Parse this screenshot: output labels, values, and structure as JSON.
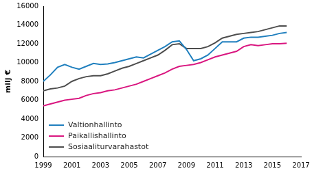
{
  "chart_data": {
    "type": "line",
    "y_label": "milj €",
    "x": [
      1999,
      1999.5,
      2000,
      2000.5,
      2001,
      2001.5,
      2002,
      2002.5,
      2003,
      2003.5,
      2004,
      2004.5,
      2005,
      2005.5,
      2006,
      2006.5,
      2007,
      2007.5,
      2008,
      2008.5,
      2009,
      2009.5,
      2010,
      2010.5,
      2011,
      2011.5,
      2012,
      2012.5,
      2013,
      2013.5,
      2014,
      2014.5,
      2015,
      2015.5,
      2016
    ],
    "series": [
      {
        "name": "Valtionhallinto",
        "color": "#1f7fbe",
        "values": [
          8000,
          8700,
          9500,
          9800,
          9500,
          9300,
          9600,
          9900,
          9800,
          9850,
          10000,
          10200,
          10400,
          10600,
          10500,
          10900,
          11300,
          11700,
          12200,
          12300,
          11400,
          10200,
          10400,
          10800,
          11500,
          12200,
          12200,
          12200,
          12600,
          12700,
          12700,
          12800,
          12900,
          13100,
          13200
        ]
      },
      {
        "name": "Paikallishallinto",
        "color": "#d9157f",
        "values": [
          5400,
          5600,
          5800,
          6000,
          6100,
          6200,
          6500,
          6700,
          6800,
          7000,
          7100,
          7300,
          7500,
          7700,
          8000,
          8300,
          8600,
          8900,
          9300,
          9600,
          9700,
          9800,
          10000,
          10300,
          10600,
          10800,
          11000,
          11200,
          11700,
          11900,
          11800,
          11900,
          12000,
          12000,
          12050
        ]
      },
      {
        "name": "Sosiaaliturvarahastot",
        "color": "#4d4d4d",
        "values": [
          7000,
          7200,
          7300,
          7500,
          8000,
          8300,
          8500,
          8600,
          8600,
          8800,
          9100,
          9400,
          9600,
          9900,
          10200,
          10500,
          10800,
          11300,
          11900,
          12000,
          11500,
          11500,
          11500,
          11700,
          12100,
          12600,
          12800,
          13000,
          13100,
          13200,
          13300,
          13500,
          13700,
          13900,
          13900
        ]
      }
    ],
    "xlim": [
      1999,
      2017
    ],
    "xticks": [
      1999,
      2001,
      2003,
      2005,
      2007,
      2009,
      2011,
      2013,
      2015,
      2017
    ],
    "ylim": [
      0,
      16000
    ],
    "yticks": [
      0,
      2000,
      4000,
      6000,
      8000,
      10000,
      12000,
      14000,
      16000
    ],
    "grid": false,
    "legend": "lower left"
  }
}
